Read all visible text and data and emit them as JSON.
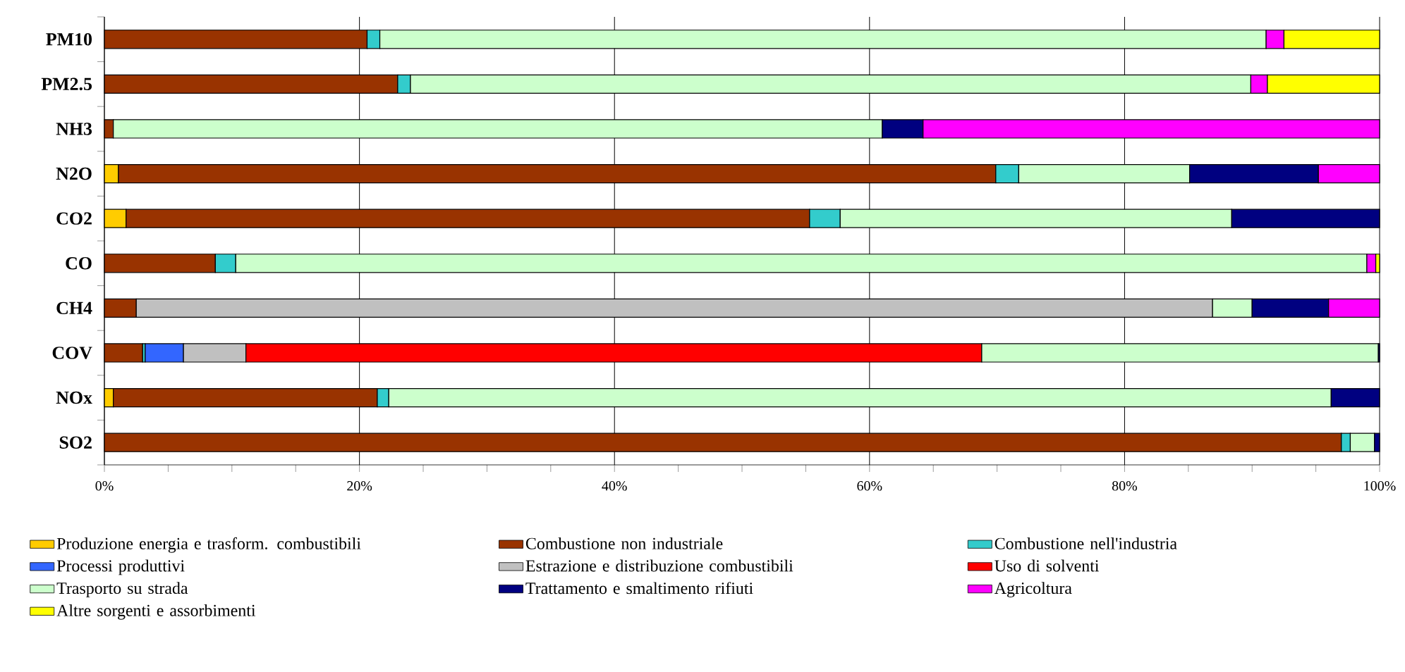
{
  "chart_data": {
    "type": "bar",
    "orientation": "horizontal",
    "stacked": true,
    "grid": "x",
    "legend": "bottom",
    "categories": [
      "PM10",
      "PM2.5",
      "NH3",
      "N2O",
      "CO2",
      "CO",
      "CH4",
      "COV",
      "NOx",
      "SO2"
    ],
    "xlim": [
      0,
      100
    ],
    "xticks": [
      {
        "value": 0,
        "label": "0%"
      },
      {
        "value": 20,
        "label": "20%"
      },
      {
        "value": 40,
        "label": "40%"
      },
      {
        "value": 60,
        "label": "60%"
      },
      {
        "value": 80,
        "label": "80%"
      },
      {
        "value": 100,
        "label": "100%"
      }
    ],
    "series": [
      {
        "name": "Produzione energia e trasform. combustibili",
        "color": "#ffcc00",
        "values": [
          null,
          null,
          null,
          1.1,
          1.7,
          null,
          null,
          null,
          0.7,
          null
        ]
      },
      {
        "name": "Combustione non industriale",
        "color": "#993300",
        "values": [
          20.6,
          23.0,
          0.7,
          68.8,
          53.6,
          8.7,
          2.5,
          3.0,
          20.7,
          97.0
        ]
      },
      {
        "name": "Combustione nell'industria",
        "color": "#33cccc",
        "values": [
          1.0,
          1.0,
          null,
          1.8,
          2.4,
          1.6,
          null,
          0.2,
          0.9,
          0.7
        ]
      },
      {
        "name": "Processi produttivi",
        "color": "#3366ff",
        "values": [
          null,
          null,
          null,
          null,
          null,
          null,
          null,
          3.0,
          null,
          null
        ]
      },
      {
        "name": "Estrazione e distribuzione combustibili",
        "color": "#c0c0c0",
        "values": [
          null,
          null,
          null,
          null,
          null,
          null,
          84.4,
          4.9,
          null,
          null
        ]
      },
      {
        "name": "Uso di solventi",
        "color": "#ff0000",
        "values": [
          null,
          null,
          null,
          null,
          null,
          null,
          null,
          57.7,
          null,
          null
        ]
      },
      {
        "name": "Trasporto su strada",
        "color": "#ccffcc",
        "values": [
          69.5,
          65.9,
          60.3,
          13.4,
          30.7,
          88.7,
          3.1,
          31.1,
          73.9,
          1.9
        ]
      },
      {
        "name": "Trattamento e smaltimento rifiuti",
        "color": "#000080",
        "values": [
          null,
          null,
          3.2,
          10.1,
          11.6,
          null,
          6.0,
          0.1,
          3.8,
          0.4
        ]
      },
      {
        "name": "Agricoltura",
        "color": "#ff00ff",
        "values": [
          1.4,
          1.3,
          35.8,
          4.8,
          null,
          0.7,
          4.0,
          null,
          null,
          null
        ]
      },
      {
        "name": "Altre sorgenti e assorbimenti",
        "color": "#ffff00",
        "values": [
          7.5,
          8.8,
          null,
          null,
          null,
          0.3,
          null,
          null,
          null,
          null
        ]
      }
    ]
  }
}
